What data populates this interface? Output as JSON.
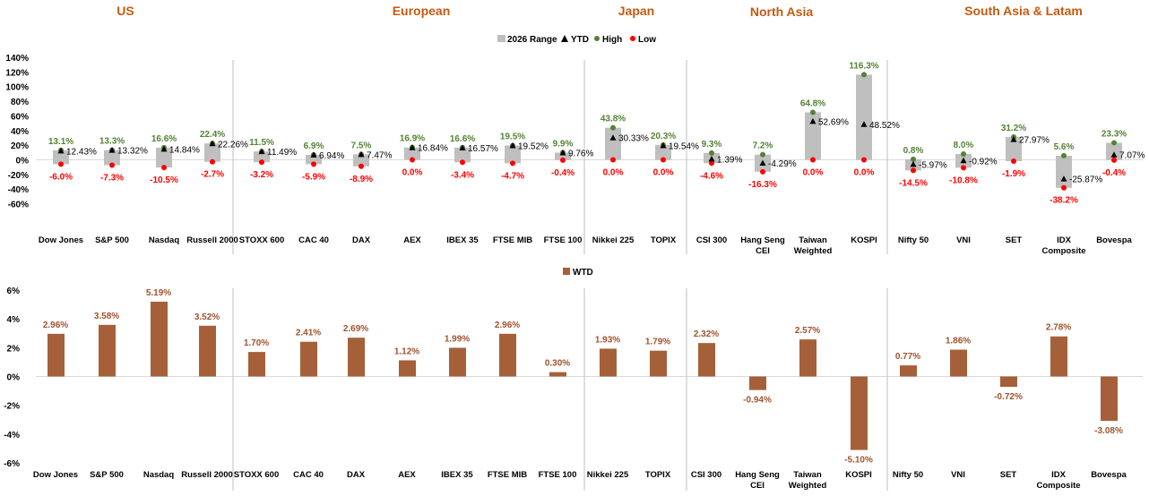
{
  "regions": [
    "US",
    "European",
    "Japan",
    "North Asia",
    "South Asia & Latam"
  ],
  "chart_data": [
    {
      "type": "range",
      "legend": [
        "2026 Range",
        "YTD",
        "High",
        "Low"
      ],
      "colors": {
        "range": "#bfbfbf",
        "ytd": "#000000",
        "high": "#548235",
        "low": "#ff0000"
      },
      "ylim": [
        -80,
        140
      ],
      "yticks": [
        -60,
        -40,
        -20,
        0,
        20,
        40,
        60,
        80,
        100,
        120,
        140
      ],
      "ytick_labels": [
        "-60%",
        "-40%",
        "-20%",
        "0%",
        "20%",
        "40%",
        "60%",
        "80%",
        "100%",
        "120%",
        "140%"
      ],
      "categories": [
        "Dow Jones",
        "S&P 500",
        "Nasdaq",
        "Russell 2000",
        "STOXX 600",
        "CAC 40",
        "DAX",
        "AEX",
        "IBEX 35",
        "FTSE MIB",
        "FTSE 100",
        "Nikkei 225",
        "TOPIX",
        "CSI 300",
        "Hang Seng CEI",
        "Taiwan Weighted",
        "KOSPI",
        "Nifty 50",
        "VNI",
        "SET",
        "IDX Composite",
        "Bovespa"
      ],
      "high": [
        13.1,
        13.3,
        16.6,
        22.4,
        11.5,
        6.9,
        7.5,
        16.9,
        16.6,
        19.5,
        9.9,
        43.8,
        20.3,
        9.3,
        7.2,
        64.8,
        116.3,
        0.8,
        8.0,
        31.2,
        5.6,
        23.3
      ],
      "high_labels": [
        "13.1%",
        "13.3%",
        "16.6%",
        "22.4%",
        "11.5%",
        "6.9%",
        "7.5%",
        "16.9%",
        "16.6%",
        "19.5%",
        "9.9%",
        "43.8%",
        "20.3%",
        "9.3%",
        "7.2%",
        "64.8%",
        "116.3%",
        "0.8%",
        "8.0%",
        "31.2%",
        "5.6%",
        "23.3%"
      ],
      "low": [
        -6.0,
        -7.3,
        -10.5,
        -2.7,
        -3.2,
        -5.9,
        -8.9,
        0.0,
        -3.4,
        -4.7,
        -0.4,
        0.0,
        0.0,
        -4.6,
        -16.3,
        0.0,
        0.0,
        -14.5,
        -10.8,
        -1.9,
        -38.2,
        -0.4
      ],
      "low_labels": [
        "-6.0%",
        "-7.3%",
        "-10.5%",
        "-2.7%",
        "-3.2%",
        "-5.9%",
        "-8.9%",
        "0.0%",
        "-3.4%",
        "-4.7%",
        "-0.4%",
        "0.0%",
        "0.0%",
        "-4.6%",
        "-16.3%",
        "0.0%",
        "0.0%",
        "-14.5%",
        "-10.8%",
        "-1.9%",
        "-38.2%",
        "-0.4%"
      ],
      "ytd": [
        12.43,
        13.32,
        14.84,
        22.26,
        11.49,
        6.94,
        7.47,
        16.84,
        16.57,
        19.52,
        9.76,
        30.33,
        19.54,
        1.39,
        -4.29,
        52.69,
        48.52,
        -5.97,
        -0.92,
        27.97,
        -25.87,
        7.07
      ],
      "ytd_labels": [
        "12.43%",
        "13.32%",
        "14.84%",
        "22.26%",
        "11.49%",
        "6.94%",
        "7.47%",
        "16.84%",
        "16.57%",
        "19.52%",
        "9.76%",
        "30.33%",
        "19.54%",
        "1.39%",
        "-4.29%",
        "52.69%",
        "48.52%",
        "-5.97%",
        "-0.92%",
        "27.97%",
        "-25.87%",
        "7.07%"
      ]
    },
    {
      "type": "bar",
      "legend": [
        "WTD"
      ],
      "colors": {
        "bar": "#a5603a",
        "label": "#a0522d"
      },
      "ylim": [
        -6,
        6
      ],
      "yticks": [
        -6,
        -4,
        -2,
        0,
        2,
        4,
        6
      ],
      "ytick_labels": [
        "-6%",
        "-4%",
        "-2%",
        "0%",
        "2%",
        "4%",
        "6%"
      ],
      "categories": [
        "Dow Jones",
        "S&P 500",
        "Nasdaq",
        "Russell 2000",
        "STOXX 600",
        "CAC 40",
        "DAX",
        "AEX",
        "IBEX 35",
        "FTSE MIB",
        "FTSE 100",
        "Nikkei 225",
        "TOPIX",
        "CSI 300",
        "Hang Seng CEI",
        "Taiwan Weighted",
        "KOSPI",
        "Nifty 50",
        "VNI",
        "SET",
        "IDX Composite",
        "Bovespa"
      ],
      "values": [
        2.96,
        3.58,
        5.19,
        3.52,
        1.7,
        2.41,
        2.69,
        1.12,
        1.99,
        2.96,
        0.3,
        1.93,
        1.79,
        2.32,
        -0.94,
        2.57,
        -5.1,
        0.77,
        1.86,
        -0.72,
        2.78,
        -3.08
      ],
      "value_labels": [
        "2.96%",
        "3.58%",
        "5.19%",
        "3.52%",
        "1.70%",
        "2.41%",
        "2.69%",
        "1.12%",
        "1.99%",
        "2.96%",
        "0.30%",
        "1.93%",
        "1.79%",
        "2.32%",
        "-0.94%",
        "2.57%",
        "-5.10%",
        "0.77%",
        "1.86%",
        "-0.72%",
        "2.78%",
        "-3.08%"
      ]
    }
  ]
}
